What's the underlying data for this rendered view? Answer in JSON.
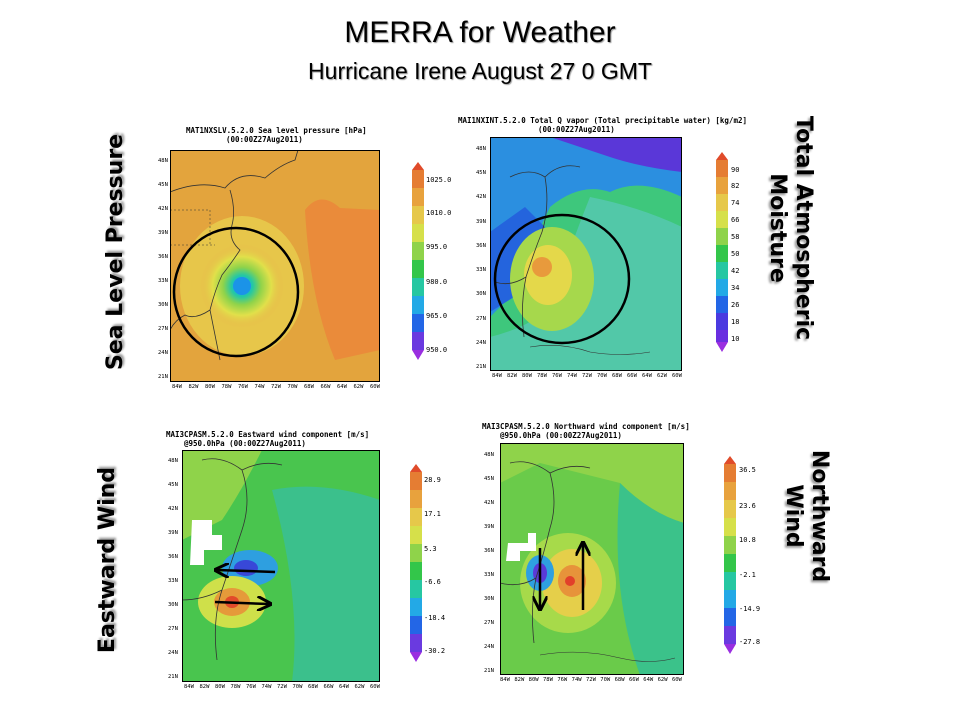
{
  "slide": {
    "title": "MERRA for Weather",
    "subtitle": "Hurricane Irene August 27 0 GMT"
  },
  "labels": {
    "sea_level_pressure": "Sea Level Pressure",
    "total_moisture_line1": "Total Atmospheric",
    "total_moisture_line2": "Moisture",
    "eastward_wind": "Eastward Wind",
    "northward_line1": "Northward",
    "northward_line2": "Wind"
  },
  "panels": {
    "slp": {
      "title_line1": "MAT1NXSLV.5.2.0 Sea level pressure [hPa]",
      "title_line2": "(00:00Z27Aug2011)",
      "colorbar": [
        "1025.0",
        "1010.0",
        "995.0",
        "980.0",
        "965.0",
        "950.0"
      ]
    },
    "tqv": {
      "title_line1": "MAI1NXINT.5.2.0 Total Q vapor (Total precipitable water) [kg/m2]",
      "title_line2": "(00:00Z27Aug2011)",
      "colorbar": [
        "90",
        "82",
        "74",
        "66",
        "58",
        "50",
        "42",
        "34",
        "26",
        "18",
        "10"
      ]
    },
    "u": {
      "title_line1": "MAI3CPASM.5.2.0 Eastward wind component [m/s]",
      "title_line2": "@950.0hPa (00:00Z27Aug2011)",
      "colorbar": [
        "28.9",
        "17.1",
        "5.3",
        "-6.6",
        "-18.4",
        "-30.2"
      ]
    },
    "v": {
      "title_line1": "MAI3CPASM.5.2.0 Northward wind component [m/s]",
      "title_line2": "@950.0hPa (00:00Z27Aug2011)",
      "colorbar": [
        "36.5",
        "23.6",
        "10.8",
        "-2.1",
        "-14.9",
        "-27.8"
      ]
    }
  },
  "axes": {
    "lat_labels": [
      "48N",
      "45N",
      "42N",
      "39N",
      "36N",
      "33N",
      "30N",
      "27N",
      "24N",
      "21N"
    ],
    "lon_labels": [
      "84W",
      "82W",
      "80W",
      "78W",
      "76W",
      "74W",
      "72W",
      "70W",
      "68W",
      "66W",
      "64W",
      "62W",
      "60W"
    ]
  }
}
